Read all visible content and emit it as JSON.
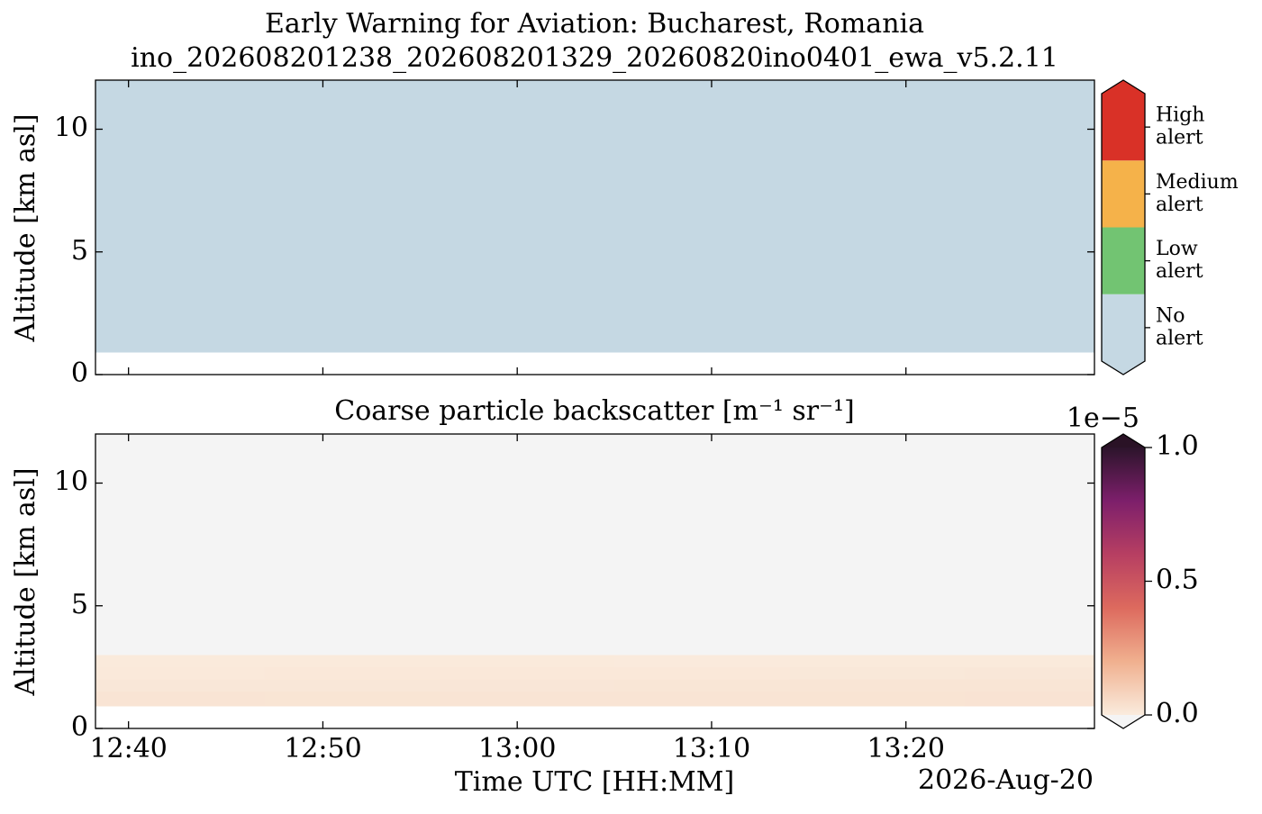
{
  "chart_data": [
    {
      "type": "category_heatmap",
      "title": "Early Warning for Aviation: Bucharest, Romania",
      "subtitle": "ino_202608201238_202608201329_20260820ino0401_ewa_v5.2.11",
      "ylabel": "Altitude [km asl]",
      "ylim": [
        0,
        12
      ],
      "yticks": [
        0,
        5,
        10
      ],
      "xlim": [
        758.3,
        809.7
      ],
      "xticks": [
        760,
        770,
        780,
        790,
        800
      ],
      "levels": [
        {
          "name": "No alert",
          "color": "#c5d8e3"
        },
        {
          "name": "Low alert",
          "color": "#72c472"
        },
        {
          "name": "Medium alert",
          "color": "#f5b24a"
        },
        {
          "name": "High alert",
          "color": "#d93127"
        }
      ],
      "x_bins": [
        758.3,
        809.7
      ],
      "y_bins": [
        0.9,
        12
      ],
      "values": [
        [
          0
        ]
      ]
    },
    {
      "type": "heatmap",
      "title": "Coarse particle backscatter [m⁻¹ sr⁻¹]",
      "ylabel": "Altitude [km asl]",
      "xlabel": "Time UTC [HH:MM]",
      "date_label": "2026-Aug-20",
      "ylim": [
        0,
        12
      ],
      "yticks": [
        0,
        5,
        10
      ],
      "xlim": [
        758.3,
        809.7
      ],
      "xticks": [
        {
          "value": 760,
          "label": "12:40"
        },
        {
          "value": 770,
          "label": "12:50"
        },
        {
          "value": 780,
          "label": "13:00"
        },
        {
          "value": 790,
          "label": "13:10"
        },
        {
          "value": 800,
          "label": "13:20"
        }
      ],
      "x_bins": [
        758.3,
        767,
        776,
        785,
        794,
        803,
        809.7
      ],
      "y_bins": [
        0.9,
        1.5,
        2.0,
        2.5,
        3.0,
        12
      ],
      "values": [
        [
          2.4e-07,
          2.2e-07,
          2.3e-07,
          2.4e-07,
          2.5e-07,
          2.6e-07
        ],
        [
          1.2e-07,
          1.4e-07,
          1.6e-07,
          1.8e-07,
          2e-07,
          2.1e-07
        ],
        [
          8e-08,
          9e-08,
          1e-07,
          1e-07,
          1.1e-07,
          1.2e-07
        ],
        [
          4e-08,
          5e-08,
          4e-08,
          3e-08,
          4e-08,
          4e-08
        ],
        [
          -1e-08,
          -1e-08,
          -1e-08,
          -1e-08,
          -1e-08,
          -1e-08
        ]
      ],
      "colorbar": {
        "clim": [
          0,
          1e-05
        ],
        "ticks": [
          {
            "value": 0,
            "label": "0.0"
          },
          {
            "value": 5e-06,
            "label": "0.5"
          },
          {
            "value": 1e-05,
            "label": "1.0"
          }
        ],
        "offset_label": "1e−5",
        "colormap": [
          "#faebdd",
          "#f0b08f",
          "#dd6a5e",
          "#b73f62",
          "#7d1f6b",
          "#2c142b"
        ],
        "under_color": "#f4f4f4",
        "over_color": "#2a1226"
      }
    }
  ]
}
